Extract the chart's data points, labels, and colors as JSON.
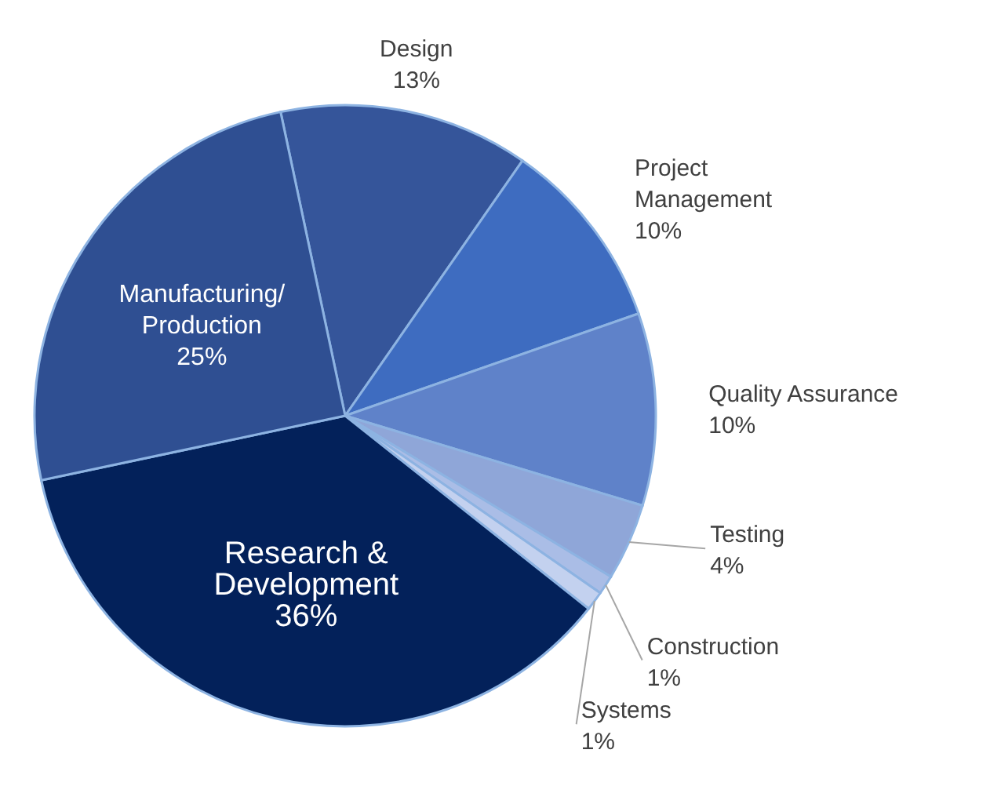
{
  "chart_data": {
    "type": "pie",
    "categories": [
      "Design",
      "Project Management",
      "Quality Assurance",
      "Testing",
      "Construction",
      "Systems",
      "Research & Development",
      "Manufacturing/Production"
    ],
    "values": [
      13,
      10,
      10,
      4,
      1,
      1,
      36,
      25
    ],
    "colors": [
      "#35559a",
      "#3e6cc0",
      "#5f82c9",
      "#8fa6d8",
      "#aabde6",
      "#c3d1ef",
      "#03215a",
      "#2f4f92"
    ],
    "data_labels": true,
    "value_labels": [
      "13%",
      "10%",
      "10%",
      "4%",
      "1%",
      "1%",
      "36%",
      "25%"
    ]
  }
}
